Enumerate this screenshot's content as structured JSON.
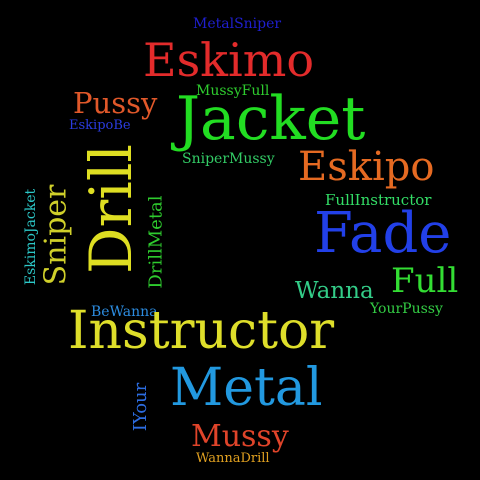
{
  "words": [
    {
      "text": "MetalSniper",
      "color": "#1f1fd0"
    },
    {
      "text": "Eskimo",
      "color": "#e32b2b"
    },
    {
      "text": "Pussy",
      "color": "#e0582a"
    },
    {
      "text": "MussyFull",
      "color": "#2ecb2e"
    },
    {
      "text": "EskipoBe",
      "color": "#2a3ce0"
    },
    {
      "text": "Jacket",
      "color": "#22dd22"
    },
    {
      "text": "SniperMussy",
      "color": "#33cc66"
    },
    {
      "text": "Drill",
      "color": "#dede22"
    },
    {
      "text": "Eskipo",
      "color": "#e56a22"
    },
    {
      "text": "DrillMetal",
      "color": "#2ecb2e"
    },
    {
      "text": "Sniper",
      "color": "#cfcf2a"
    },
    {
      "text": "EskimoJacket",
      "color": "#2cc8c8"
    },
    {
      "text": "FullInstructor",
      "color": "#33dd66"
    },
    {
      "text": "Fade",
      "color": "#2240e8"
    },
    {
      "text": "Wanna",
      "color": "#33cc88"
    },
    {
      "text": "Full",
      "color": "#33dd33"
    },
    {
      "text": "YourPussy",
      "color": "#33cc44"
    },
    {
      "text": "BeWanna",
      "color": "#2c8ce0"
    },
    {
      "text": "Instructor",
      "color": "#dede2a"
    },
    {
      "text": "Metal",
      "color": "#2299e0"
    },
    {
      "text": "IYour",
      "color": "#2c6ce0"
    },
    {
      "text": "Mussy",
      "color": "#e0442a"
    },
    {
      "text": "WannaDrill",
      "color": "#e0a020"
    }
  ]
}
